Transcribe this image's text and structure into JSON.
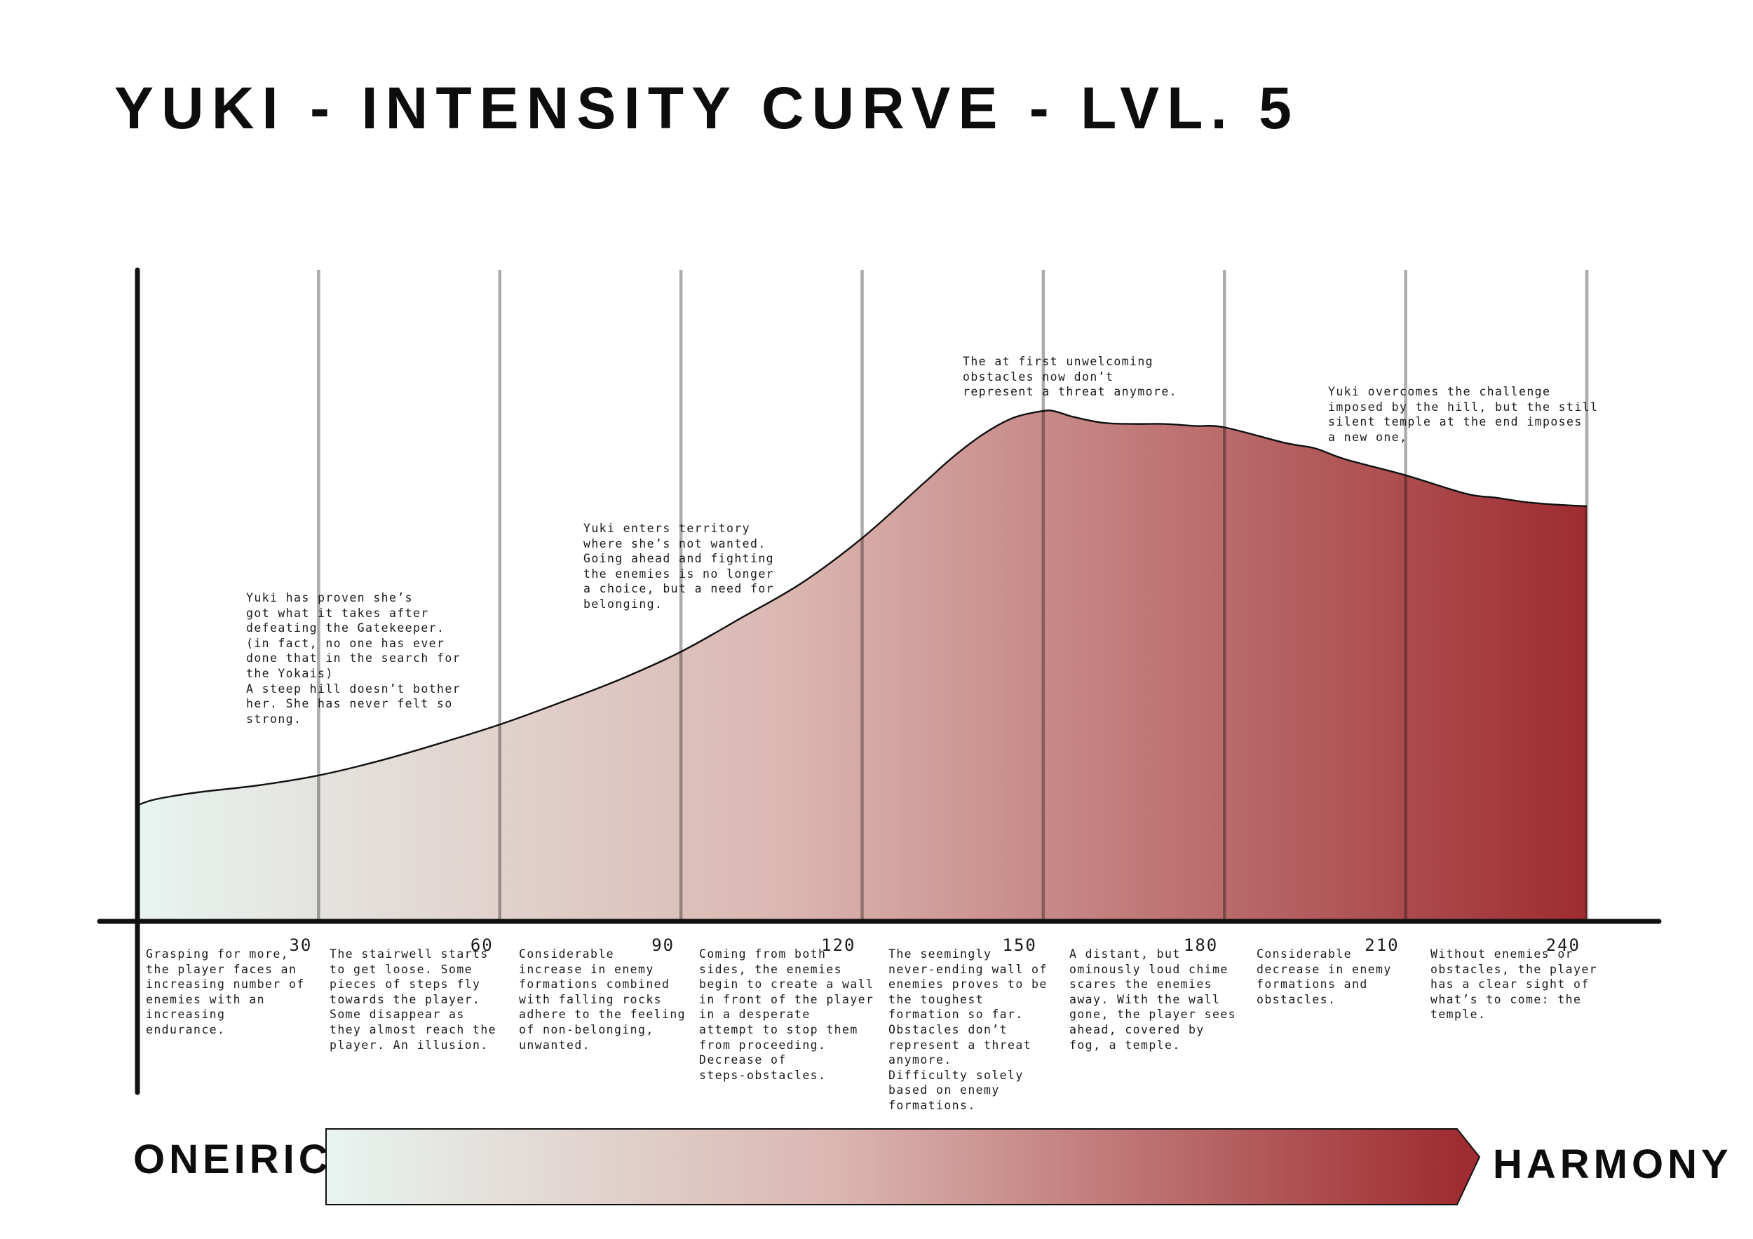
{
  "colors": {
    "gradient_start": "#e8f4f0",
    "gradient_mid": "#dbb6b1",
    "gradient_end": "#9e2c30",
    "curve": "#111111",
    "axis": "#111111",
    "gridline": "#a6a6a6"
  },
  "chart_data": {
    "type": "area",
    "title": "YUKI - INTENSITY CURVE - LVL. 5",
    "xlabel": "",
    "ylabel": "",
    "xlim": [
      -10,
      245
    ],
    "ylim": [
      0,
      100
    ],
    "x_ticks": [
      30,
      60,
      90,
      120,
      150,
      180,
      210,
      240
    ],
    "x_tick_labels": [
      "30",
      "60",
      "90",
      "120",
      "150",
      "180",
      "210",
      "240"
    ],
    "grid": "vertical",
    "series": [
      {
        "name": "Intensity",
        "points": [
          [
            0,
            23
          ],
          [
            3,
            24.2
          ],
          [
            10,
            25.6
          ],
          [
            20,
            27
          ],
          [
            30,
            29
          ],
          [
            40,
            31.9
          ],
          [
            50,
            35.4
          ],
          [
            60,
            39.2
          ],
          [
            70,
            43.6
          ],
          [
            80,
            48.3
          ],
          [
            90,
            53.8
          ],
          [
            100,
            60.6
          ],
          [
            110,
            67.6
          ],
          [
            120,
            76.6
          ],
          [
            130,
            87.4
          ],
          [
            135,
            92.8
          ],
          [
            140,
            97.4
          ],
          [
            145,
            100.7
          ],
          [
            150,
            102.1
          ],
          [
            152,
            102
          ],
          [
            155,
            100.9
          ],
          [
            160,
            99.7
          ],
          [
            165,
            99.5
          ],
          [
            170,
            99.5
          ],
          [
            175,
            99.1
          ],
          [
            180,
            98.8
          ],
          [
            190,
            95.7
          ],
          [
            195,
            94.6
          ],
          [
            200,
            92.4
          ],
          [
            210,
            89.2
          ],
          [
            220,
            85.5
          ],
          [
            225,
            84.7
          ],
          [
            230,
            83.8
          ],
          [
            235,
            83.3
          ],
          [
            240,
            83
          ]
        ]
      }
    ]
  },
  "annotations": [
    "Yuki has proven she’s\ngot what it takes after\ndefeating the Gatekeeper.\n(in fact, no one has ever\ndone that in the search for\nthe Yokais)\nA steep hill doesn’t bother\nher. She has never felt so\nstrong.",
    "Yuki enters territory\nwhere she’s not wanted.\nGoing ahead and fighting\nthe enemies is no longer\na choice, but a need for\nbelonging.",
    "The at first unwelcoming\nobstacles now don’t\nrepresent a threat anymore.",
    "Yuki overcomes the challenge\nimposed by the hill, but the still\nsilent temple at the end imposes\na new one,"
  ],
  "segments": [
    "Grasping for more,\nthe player faces an\nincreasing number of\nenemies with an\nincreasing\nendurance.",
    "The stairwell starts\nto get loose. Some\npieces of steps fly\ntowards the player.\nSome disappear as\nthey almost reach the\nplayer. An illusion.",
    "Considerable\nincrease in enemy\nformations combined\nwith falling rocks\nadhere to the feeling\nof non-belonging,\nunwanted.",
    "Coming from both\nsides, the enemies\nbegin to create a wall\nin front of the player\nin a desperate\nattempt to stop them\nfrom proceeding.\nDecrease of\nsteps-obstacles.",
    "The seemingly\nnever-ending wall of\nenemies proves to be\nthe toughest\nformation so far.\nObstacles don’t\nrepresent a threat\nanymore.\nDifficulty solely\nbased on enemy\nformations.",
    "A distant, but\nominously loud chime\nscares the enemies\naway. With the wall\ngone, the player sees\nahead, covered by\nfog, a temple.",
    "Considerable\ndecrease in enemy\nformations and\nobstacles.",
    "Without enemies or\nobstacles, the player\nhas a clear sight of\nwhat’s to come: the\ntemple."
  ],
  "scale": {
    "start_label": "ONEIRIC",
    "end_label": "HARMONY"
  }
}
